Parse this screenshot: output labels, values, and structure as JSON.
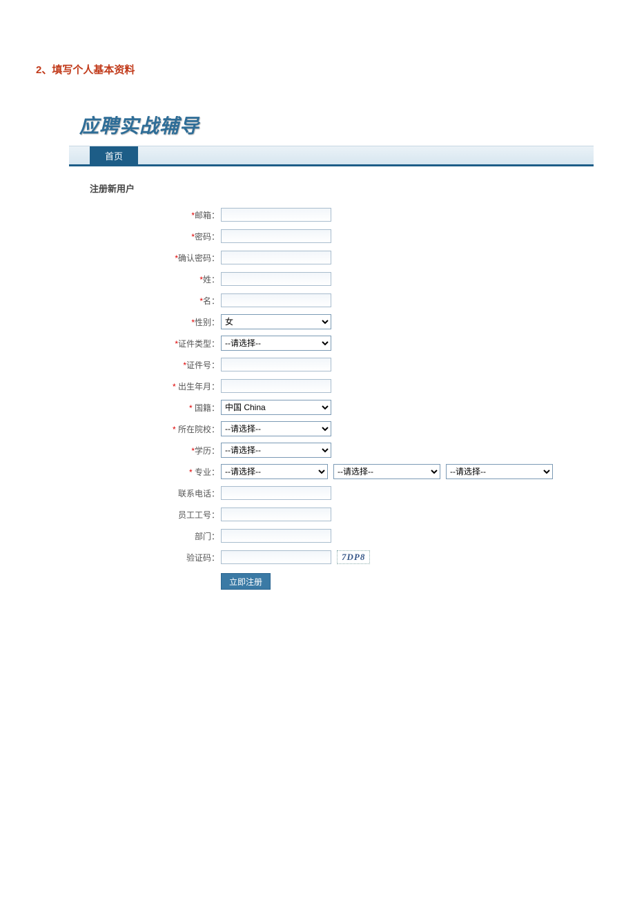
{
  "page_heading": "2、填写个人基本资料",
  "logo_text": "应聘实战辅导",
  "nav": {
    "home_tab": "首页"
  },
  "section_title": "注册新用户",
  "form": {
    "email": {
      "label": "邮箱：",
      "required": true,
      "value": ""
    },
    "password": {
      "label": "密码：",
      "required": true,
      "value": ""
    },
    "confirm_password": {
      "label": "确认密码：",
      "required": true,
      "value": ""
    },
    "lastname": {
      "label": "姓：",
      "required": true,
      "value": ""
    },
    "firstname": {
      "label": "名：",
      "required": true,
      "value": ""
    },
    "gender": {
      "label": "性别：",
      "required": true,
      "value": "女"
    },
    "id_type": {
      "label": "证件类型：",
      "required": true,
      "value": "--请选择--"
    },
    "id_number": {
      "label": "证件号：",
      "required": true,
      "value": ""
    },
    "birth": {
      "label": " 出生年月：",
      "required": true,
      "value": ""
    },
    "nationality": {
      "label": " 国籍：",
      "required": true,
      "value": "中国  China"
    },
    "school": {
      "label": " 所在院校：",
      "required": true,
      "value": "--请选择--"
    },
    "education": {
      "label": "学历：",
      "required": true,
      "value": "--请选择--"
    },
    "major": {
      "label": " 专业：",
      "required": true,
      "value1": "--请选择--",
      "value2": "--请选择--",
      "value3": "--请选择--"
    },
    "phone": {
      "label": "联系电话：",
      "required": false,
      "value": ""
    },
    "employee_id": {
      "label": "员工工号：",
      "required": false,
      "value": ""
    },
    "department": {
      "label": "部门：",
      "required": false,
      "value": ""
    },
    "captcha": {
      "label": "验证码：",
      "required": false,
      "value": "",
      "code": "7DP8"
    },
    "submit_label": "立即注册"
  },
  "colors": {
    "heading": "#c13a1a",
    "nav_bg": "#1d5d87",
    "required": "#d00",
    "button_bg": "#3b7aa5"
  }
}
